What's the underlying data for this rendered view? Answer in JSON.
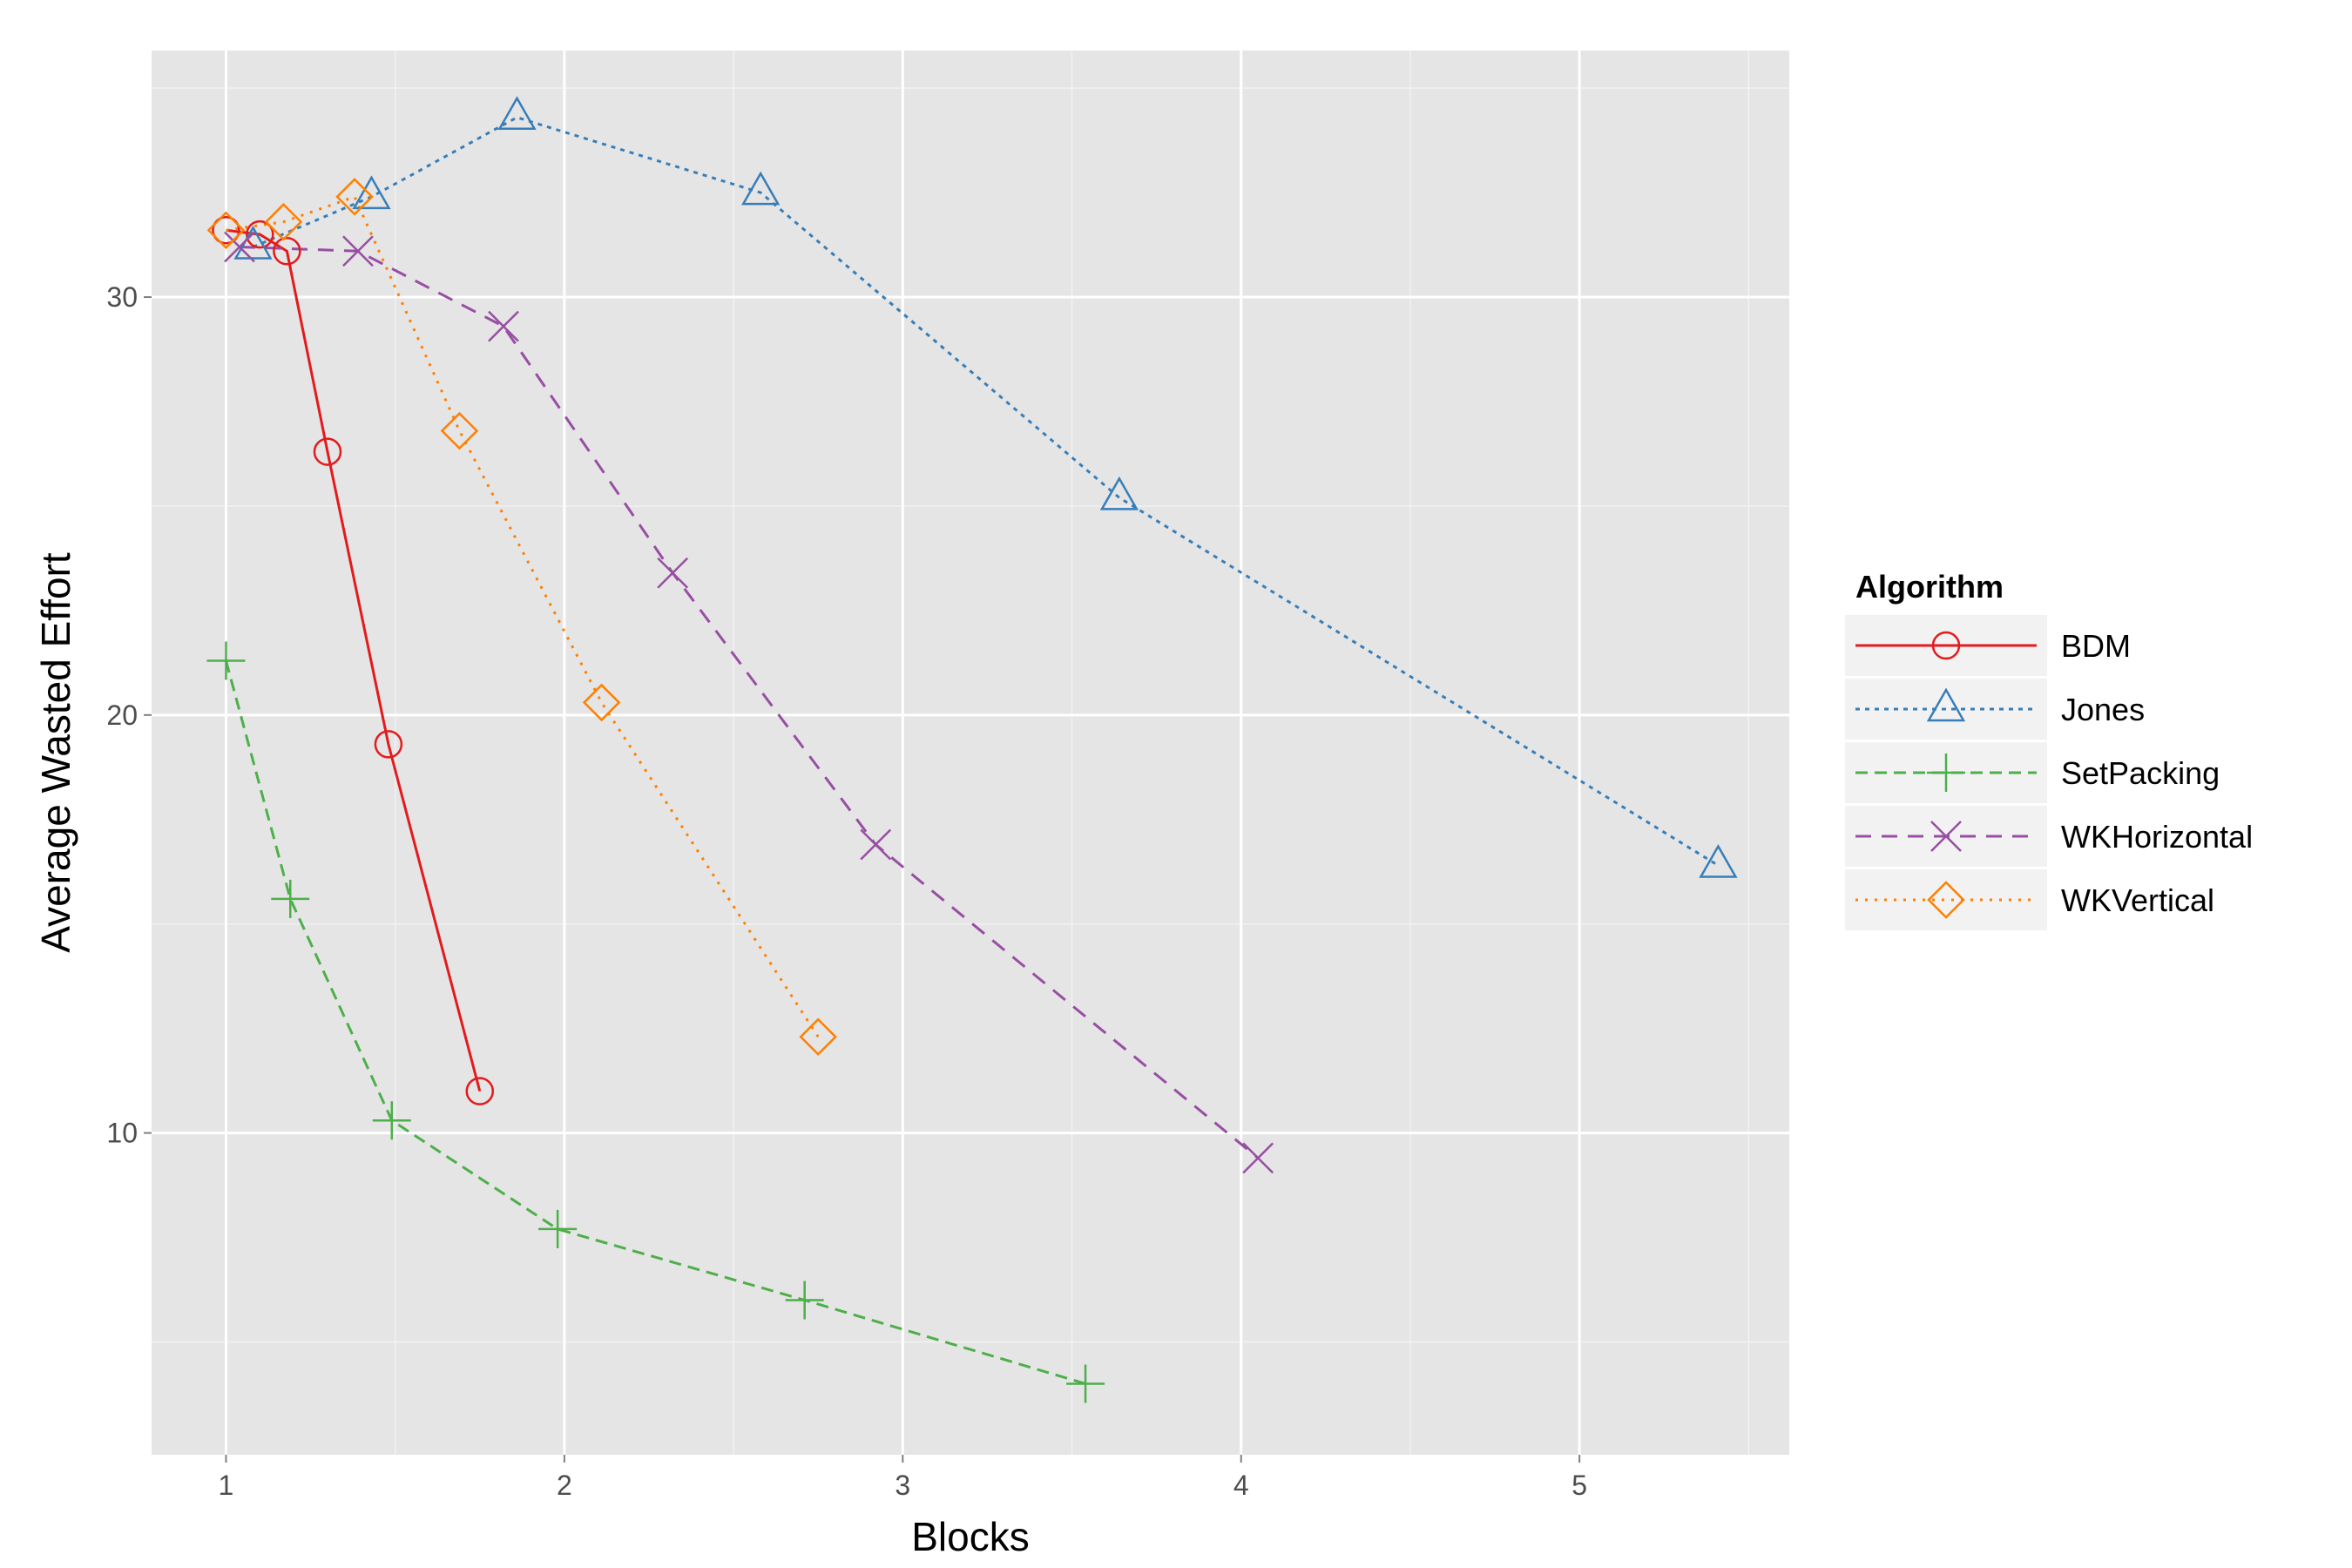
{
  "chart_data": {
    "type": "line",
    "xlabel": "Blocks",
    "ylabel": "Average Wasted Effort",
    "xlim": [
      0.78,
      5.62
    ],
    "ylim": [
      2.3,
      35.9
    ],
    "x_ticks": [
      1,
      2,
      3,
      4,
      5
    ],
    "x_tick_labels": [
      "1",
      "2",
      "3",
      "4",
      "5"
    ],
    "y_ticks": [
      10,
      20,
      30
    ],
    "y_tick_labels": [
      "10",
      "20",
      "30"
    ],
    "grid": true,
    "legend": {
      "title": "Algorithm",
      "placement": "right"
    },
    "series": [
      {
        "name": "BDM",
        "color": "#e41a1c",
        "line": "solid",
        "marker": "circle",
        "x": [
          1.0,
          1.1,
          1.18,
          1.3,
          1.48,
          1.75
        ],
        "y": [
          31.6,
          31.5,
          31.1,
          26.3,
          19.3,
          11.0
        ]
      },
      {
        "name": "Jones",
        "color": "#377eb8",
        "line": "dotted",
        "marker": "triangle",
        "x": [
          1.08,
          1.43,
          1.86,
          2.58,
          3.64,
          5.41
        ],
        "y": [
          31.2,
          32.4,
          34.3,
          32.5,
          25.2,
          16.4
        ]
      },
      {
        "name": "SetPacking",
        "color": "#4daf4a",
        "line": "dashed",
        "marker": "plus",
        "x": [
          1.0,
          1.19,
          1.49,
          1.98,
          2.71,
          3.54
        ],
        "y": [
          21.3,
          15.6,
          10.3,
          7.7,
          6.0,
          4.0
        ]
      },
      {
        "name": "WKHorizontal",
        "color": "#984ea3",
        "line": "longdash",
        "marker": "x",
        "x": [
          1.04,
          1.39,
          1.82,
          2.32,
          2.92,
          4.05
        ],
        "y": [
          31.2,
          31.1,
          29.3,
          23.4,
          16.9,
          9.4
        ]
      },
      {
        "name": "WKVertical",
        "color": "#ff7f00",
        "line": "dotted2",
        "marker": "diamond",
        "x": [
          1.0,
          1.17,
          1.38,
          1.69,
          2.11,
          2.75
        ],
        "y": [
          31.6,
          31.8,
          32.4,
          26.8,
          20.3,
          12.3
        ]
      }
    ]
  }
}
